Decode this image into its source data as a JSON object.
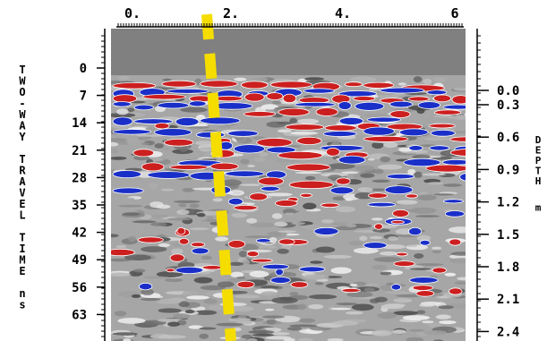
{
  "profile": {
    "top_axis": {
      "unit": "",
      "ticks": [
        "0.",
        "2.",
        "4.",
        "6"
      ]
    },
    "left_axis": {
      "label": "TWO-WAY TRAVEL TIME ns",
      "unit": "ns",
      "ticks": [
        "0",
        "7",
        "14",
        "21",
        "28",
        "35",
        "42",
        "49",
        "56",
        "63"
      ]
    },
    "right_axis": {
      "label": "DEPTH m",
      "unit": "m",
      "ticks": [
        "0.0",
        "0.3",
        "0.6",
        "0.9",
        "1.2",
        "1.5",
        "1.8",
        "2.1",
        "2.4"
      ]
    },
    "colors": {
      "positive_reflection": "#cc1f1f",
      "negative_reflection": "#1a2fc8",
      "marker_line": "#f5dd00",
      "air_band": "#808080"
    },
    "marker": {
      "style": "dashed",
      "position_m": 1.6
    }
  }
}
